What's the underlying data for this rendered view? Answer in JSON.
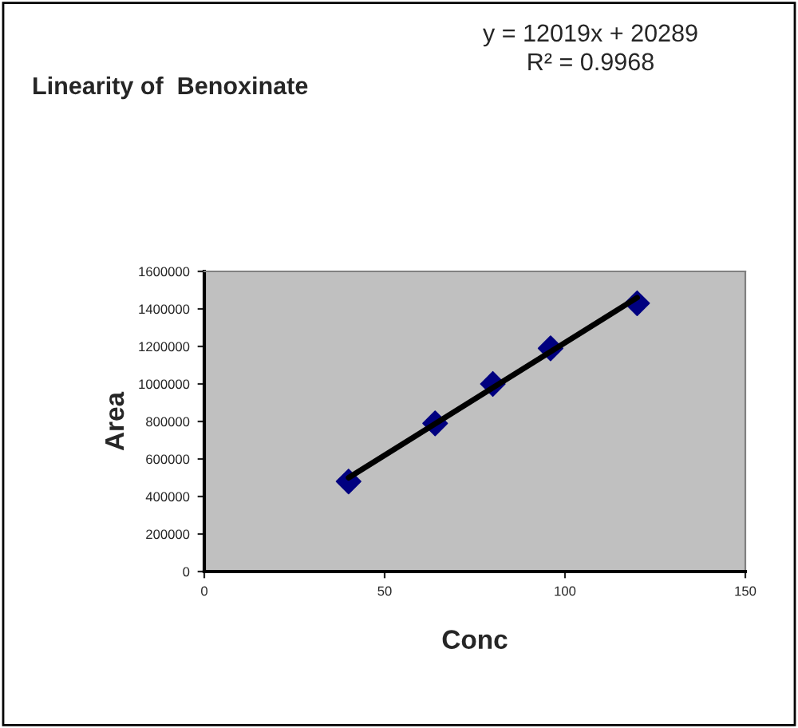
{
  "chart_data": {
    "type": "scatter",
    "title": "Linearity of  Benoxinate",
    "xlabel": "Conc",
    "ylabel": "Area",
    "annotations": [
      "y = 12019x + 20289",
      "R² = 0.9968"
    ],
    "series": [
      {
        "color": "#000080",
        "marker": "diamond",
        "x": [
          40,
          64,
          80,
          96,
          120
        ],
        "values": [
          480000,
          790000,
          1000000,
          1190000,
          1430000
        ]
      },
      {
        "type": "line",
        "color": "#000000",
        "marker": "none",
        "x": [
          40,
          120
        ],
        "values": [
          500000,
          1460000
        ]
      }
    ],
    "xlim": [
      0,
      150
    ],
    "xticks": [
      0,
      50,
      100,
      150
    ],
    "ylim": [
      0,
      1600000
    ],
    "yticks": [
      0,
      200000,
      400000,
      600000,
      800000,
      1000000,
      1200000,
      1400000,
      1600000
    ],
    "grid": false,
    "legend": false
  }
}
